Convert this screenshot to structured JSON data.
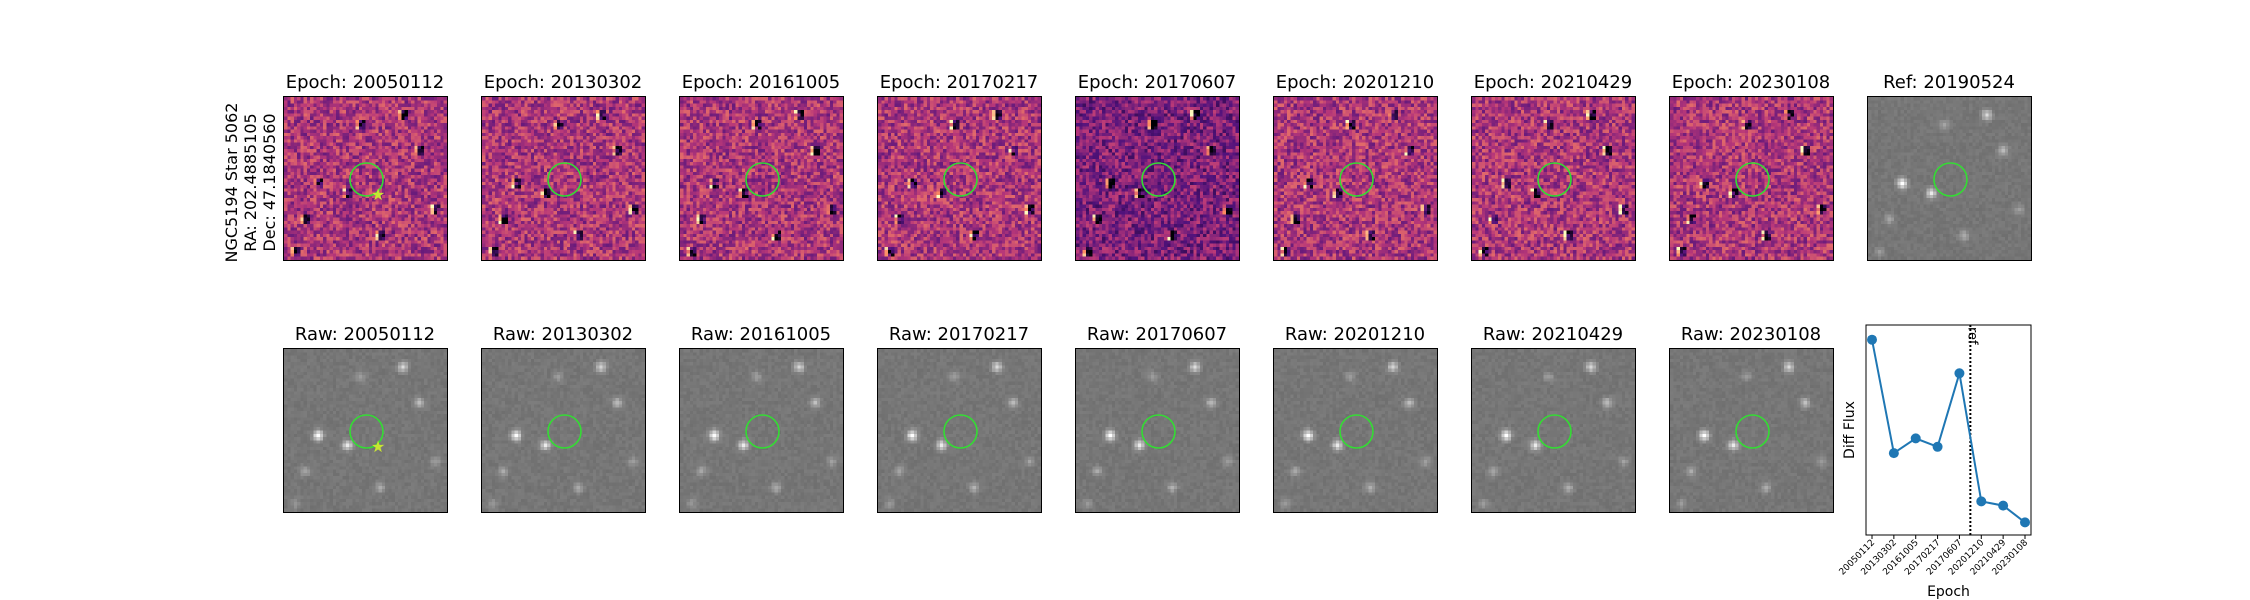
{
  "target": {
    "galaxy_star": "NGC5194 Star 5062",
    "ra": "RA: 202.4885105",
    "dec": "Dec: 47.1840560"
  },
  "diff_panels": [
    {
      "title": "Epoch: 20050112",
      "marker": true
    },
    {
      "title": "Epoch: 20130302",
      "marker": false
    },
    {
      "title": "Epoch: 20161005",
      "marker": false
    },
    {
      "title": "Epoch: 20170217",
      "marker": false
    },
    {
      "title": "Epoch: 20170607",
      "marker": false
    },
    {
      "title": "Epoch: 20201210",
      "marker": false
    },
    {
      "title": "Epoch: 20210429",
      "marker": false
    },
    {
      "title": "Epoch: 20230108",
      "marker": false
    }
  ],
  "ref_panel": {
    "title": "Ref: 20190524"
  },
  "raw_panels": [
    {
      "title": "Raw: 20050112",
      "marker": true
    },
    {
      "title": "Raw: 20130302",
      "marker": false
    },
    {
      "title": "Raw: 20161005",
      "marker": false
    },
    {
      "title": "Raw: 20170217",
      "marker": false
    },
    {
      "title": "Raw: 20170607",
      "marker": false
    },
    {
      "title": "Raw: 20201210",
      "marker": false
    },
    {
      "title": "Raw: 20210429",
      "marker": false
    },
    {
      "title": "Raw: 20230108",
      "marker": false
    }
  ],
  "colors": {
    "circle": "#33dd33",
    "marker": "#c8e632",
    "line": "#1f77b4"
  },
  "chart_data": {
    "type": "line",
    "xlabel": "Epoch",
    "ylabel": "Diff Flux",
    "categories": [
      "20050112",
      "20130302",
      "20161005",
      "20170217",
      "20170607",
      "20201210",
      "20210429",
      "20230108"
    ],
    "values": [
      0.93,
      0.39,
      0.46,
      0.42,
      0.77,
      0.16,
      0.14,
      0.06
    ],
    "ylim": [
      0,
      1
    ],
    "ref_line": {
      "label": "ref",
      "position_between": [
        4,
        5
      ],
      "style": "dotted"
    }
  }
}
